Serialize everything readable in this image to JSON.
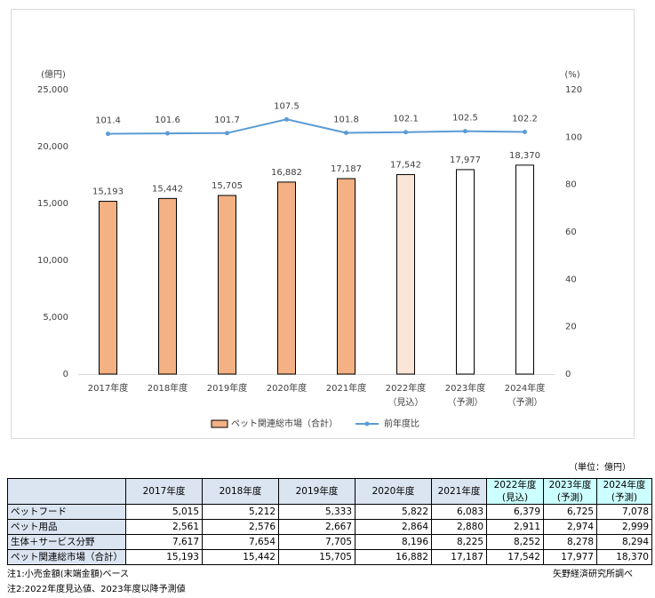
{
  "chart_data": {
    "type": "bar-line",
    "y_label": "(億円)",
    "y2_label": "(%)",
    "categories": [
      "2017年度",
      "2018年度",
      "2019年度",
      "2020年度",
      "2021年度",
      "2022年度",
      "2023年度",
      "2024年度"
    ],
    "category_sublabels": [
      null,
      null,
      null,
      null,
      null,
      "（見込）",
      "（予測）",
      "（予測）"
    ],
    "ylim": [
      0,
      25000
    ],
    "yticks": [
      0,
      {
        "value": 5000,
        "label": "5,000"
      },
      {
        "value": 10000,
        "label": "10,000"
      },
      {
        "value": 15000,
        "label": "15,000"
      },
      {
        "value": 20000,
        "label": "20,000"
      },
      {
        "value": 25000,
        "label": "25,000"
      }
    ],
    "y2lim": [
      0,
      120
    ],
    "y2ticks": [
      0,
      20,
      40,
      60,
      80,
      100,
      120
    ],
    "grid": false,
    "legend": "bottom",
    "series": [
      {
        "name": "ペット関連総市場（合計）",
        "type": "bar",
        "color": "#f4b183",
        "colors": [
          "#f4b183",
          "#f4b183",
          "#f4b183",
          "#f4b183",
          "#f4b183",
          "#fbe5d6",
          "#ffffff",
          "#ffffff"
        ],
        "values": [
          15193,
          15442,
          15705,
          16882,
          17187,
          17542,
          17977,
          18370
        ],
        "value_labels": [
          "15,193",
          "15,442",
          "15,705",
          "16,882",
          "17,187",
          "17,542",
          "17,977",
          "18,370"
        ]
      },
      {
        "name": "前年度比",
        "type": "line",
        "axis": "y2",
        "color": "#5b9bd5",
        "values": [
          101.4,
          101.6,
          101.7,
          107.5,
          101.8,
          102.1,
          102.5,
          102.2
        ]
      }
    ]
  },
  "table": {
    "unit": "（単位：億円）",
    "header": [
      null,
      [
        "2017年度"
      ],
      [
        "2018年度"
      ],
      [
        "2019年度"
      ],
      [
        "2020年度"
      ],
      [
        "2021年度"
      ],
      [
        "2022年度",
        "(見込)"
      ],
      [
        "2023年度",
        "(予測)"
      ],
      [
        "2024年度",
        "(予測)"
      ]
    ],
    "rows": [
      [
        "ペットフード",
        "5,015",
        "5,212",
        "5,333",
        "5,822",
        "6,083",
        "6,379",
        "6,725",
        "7,078"
      ],
      [
        "ペット用品",
        "2,561",
        "2,576",
        "2,667",
        "2,864",
        "2,880",
        "2,911",
        "2,974",
        "2,999"
      ],
      [
        "生体＋サービス分野",
        "7,617",
        "7,654",
        "7,705",
        "8,196",
        "8,225",
        "8,252",
        "8,278",
        "8,294"
      ],
      [
        "ペット関連総市場（合計）",
        "15,193",
        "15,442",
        "15,705",
        "16,882",
        "17,187",
        "17,542",
        "17,977",
        "18,370"
      ]
    ]
  },
  "notes": [
    "注1:小売金額(末端金額)ベース",
    "注2:2022年度見込値、2023年度以降予測値"
  ],
  "source": "矢野経済研究所調べ"
}
